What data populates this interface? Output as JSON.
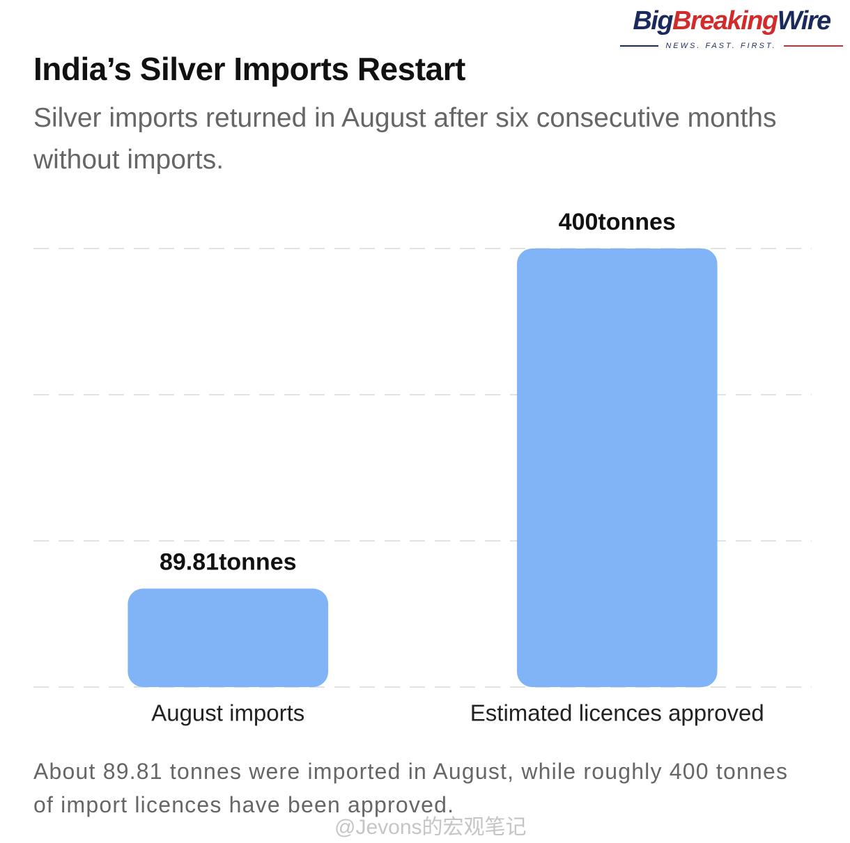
{
  "brand": {
    "name_parts": [
      "Big",
      "Breaking",
      "Wire"
    ],
    "tagline": "NEWS. FAST. FIRST."
  },
  "chart_data": {
    "type": "bar",
    "title": "India’s Silver Imports Restart",
    "subtitle": "Silver imports returned in August after six consecutive months without imports.",
    "categories": [
      "August imports",
      "Estimated licences approved"
    ],
    "values": [
      89.81,
      400
    ],
    "value_labels": [
      "89.81tonnes",
      "400tonnes"
    ],
    "color": "#80b4f7",
    "ylim": [
      0,
      400
    ],
    "yticks": [
      0,
      133.33,
      266.67,
      400
    ],
    "grid": true,
    "note": "About 89.81 tonnes were imported in August, while roughly 400 tonnes of import licences have been approved."
  },
  "watermark": "@Jevons的宏观笔记"
}
